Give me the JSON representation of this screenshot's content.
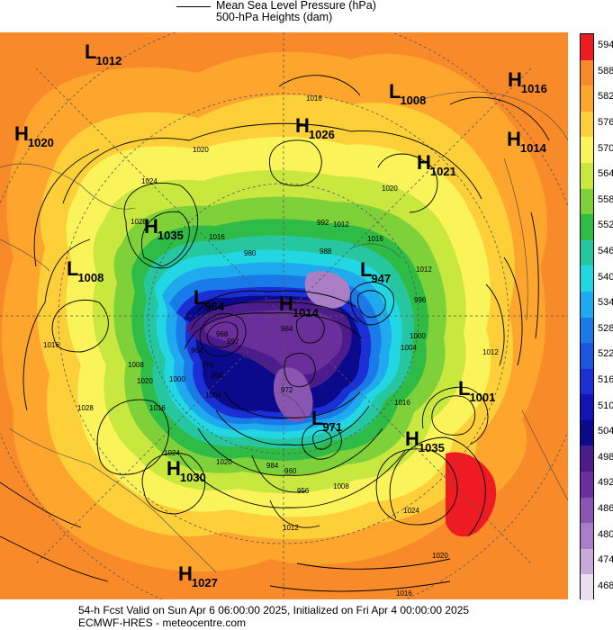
{
  "header": {
    "line1": "Mean Sea Level Pressure (hPa)",
    "line2": "500-hPa Heights (dam)"
  },
  "footer": {
    "line1": "54-h Fcst Valid on Sun Apr  6 06:00:00 2025, Initialized on Fri Apr  4 00:00:00 2025",
    "line2": "ECMWF-HRES  - meteocentre.com"
  },
  "colorbar": {
    "levels": [
      "594",
      "588",
      "582",
      "576",
      "570",
      "564",
      "558",
      "552",
      "546",
      "540",
      "534",
      "528",
      "522",
      "516",
      "510",
      "504",
      "498",
      "492",
      "486",
      "480",
      "474",
      "468"
    ],
    "colors": [
      "#ee1c22",
      "#f98a2a",
      "#fda52c",
      "#fdd03a",
      "#fbf35a",
      "#c9e83f",
      "#7fd13a",
      "#2fbc46",
      "#26c7a0",
      "#22d6e2",
      "#1fa9ee",
      "#1a7be8",
      "#1b55e0",
      "#1a30d5",
      "#1214b8",
      "#0c0a8c",
      "#4c1c8c",
      "#6a2f9a",
      "#8a55b0",
      "#a97ec6",
      "#c9a9dc",
      "#ebdff2"
    ]
  },
  "pressure_centers": [
    {
      "type": "L",
      "value": "1012"
    },
    {
      "type": "L",
      "value": "1008"
    },
    {
      "type": "H",
      "value": "1016"
    },
    {
      "type": "H",
      "value": "1020"
    },
    {
      "type": "H",
      "value": "1026"
    },
    {
      "type": "H",
      "value": "1014"
    },
    {
      "type": "H",
      "value": "1021"
    },
    {
      "type": "H",
      "value": "1035"
    },
    {
      "type": "L",
      "value": "1008"
    },
    {
      "type": "L",
      "value": "947"
    },
    {
      "type": "L",
      "value": "964"
    },
    {
      "type": "H",
      "value": "1014"
    },
    {
      "type": "L",
      "value": "1001"
    },
    {
      "type": "L",
      "value": "971"
    },
    {
      "type": "H",
      "value": "1035"
    },
    {
      "type": "H",
      "value": "1030"
    },
    {
      "type": "H",
      "value": "1027"
    }
  ],
  "isobar_labels": [
    "1016",
    "1020",
    "1024",
    "1028",
    "1020",
    "1016",
    "1012",
    "1016",
    "1016",
    "1020",
    "1024",
    "1028",
    "1020",
    "1016",
    "1012",
    "1008",
    "1004",
    "1000",
    "996",
    "992",
    "988",
    "984",
    "980",
    "976",
    "972",
    "968",
    "964",
    "960",
    "956",
    "1012",
    "1008",
    "1004",
    "1000",
    "996",
    "992",
    "984",
    "1016",
    "1012",
    "1024",
    "1020",
    "1016"
  ]
}
